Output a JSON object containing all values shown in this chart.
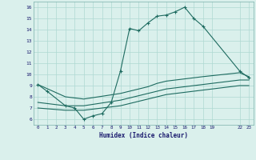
{
  "xlabel": "Humidex (Indice chaleur)",
  "bg_color": "#daf0ec",
  "grid_color": "#aed8d2",
  "line_color": "#1e6b60",
  "xlim": [
    -0.5,
    23.5
  ],
  "ylim": [
    5.5,
    16.5
  ],
  "xticks": [
    0,
    1,
    2,
    3,
    4,
    5,
    6,
    7,
    8,
    9,
    10,
    11,
    12,
    13,
    14,
    15,
    16,
    17,
    18,
    19,
    22,
    23
  ],
  "yticks": [
    6,
    7,
    8,
    9,
    10,
    11,
    12,
    13,
    14,
    15,
    16
  ],
  "line1_x": [
    0,
    1,
    3,
    4,
    5,
    6,
    7,
    8,
    9,
    10,
    11,
    12,
    13,
    14,
    15,
    16,
    17,
    18,
    22,
    23
  ],
  "line1_y": [
    9.1,
    8.5,
    7.2,
    7.0,
    6.0,
    6.3,
    6.5,
    7.5,
    10.3,
    14.1,
    13.9,
    14.6,
    15.2,
    15.3,
    15.6,
    16.0,
    15.0,
    14.3,
    10.3,
    9.7
  ],
  "line2_x": [
    0,
    3,
    5,
    9,
    10,
    11,
    12,
    13,
    14,
    15,
    16,
    17,
    18,
    22,
    23
  ],
  "line2_y": [
    9.1,
    8.0,
    7.8,
    8.3,
    8.5,
    8.7,
    8.9,
    9.2,
    9.4,
    9.5,
    9.6,
    9.7,
    9.8,
    10.15,
    9.8
  ],
  "line3_x": [
    0,
    3,
    5,
    9,
    10,
    11,
    12,
    13,
    14,
    15,
    16,
    17,
    18,
    22,
    23
  ],
  "line3_y": [
    7.5,
    7.2,
    7.2,
    7.7,
    7.9,
    8.1,
    8.3,
    8.5,
    8.7,
    8.8,
    8.9,
    9.0,
    9.1,
    9.5,
    9.5
  ],
  "line4_x": [
    0,
    3,
    5,
    9,
    10,
    11,
    12,
    13,
    14,
    15,
    16,
    17,
    18,
    22,
    23
  ],
  "line4_y": [
    7.0,
    6.8,
    6.8,
    7.2,
    7.4,
    7.6,
    7.8,
    8.0,
    8.2,
    8.3,
    8.4,
    8.5,
    8.6,
    9.0,
    9.0
  ]
}
